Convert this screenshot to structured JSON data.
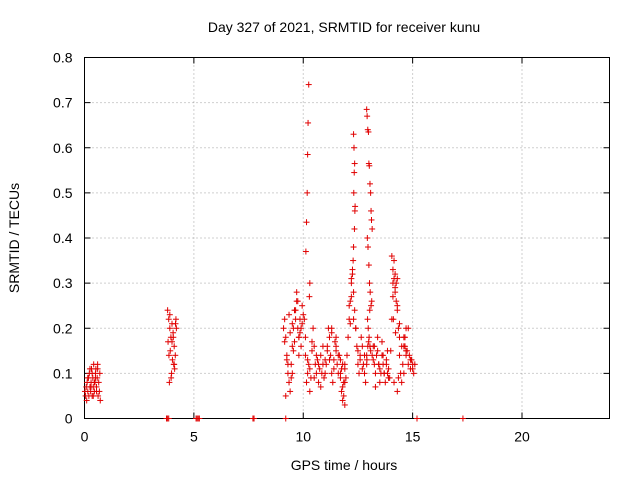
{
  "chart_data": {
    "type": "scatter",
    "title": "Day 327 of 2021, SRMTID for receiver kunu",
    "xlabel": "GPS time / hours",
    "ylabel": "SRMTID / TECUs",
    "xlim": [
      0,
      24
    ],
    "ylim": [
      0,
      0.8
    ],
    "xticks": [
      0,
      5,
      10,
      15,
      20
    ],
    "yticks": [
      0,
      0.1,
      0.2,
      0.3,
      0.4,
      0.5,
      0.6,
      0.7,
      0.8
    ],
    "xtick_labels": [
      "0",
      "5",
      "10",
      "15",
      "20"
    ],
    "ytick_labels": [
      "0",
      "0.1",
      "0.2",
      "0.3",
      "0.4",
      "0.5",
      "0.6",
      "0.7",
      "0.8"
    ],
    "grid": true,
    "marker": "+",
    "color": "#e00000",
    "series": [
      {
        "name": "SRMTID",
        "x": [
          0.02,
          0.05,
          0.08,
          0.1,
          0.12,
          0.15,
          0.18,
          0.2,
          0.22,
          0.25,
          0.28,
          0.3,
          0.32,
          0.35,
          0.38,
          0.4,
          0.42,
          0.45,
          0.48,
          0.5,
          0.52,
          0.55,
          0.58,
          0.6,
          0.62,
          0.65,
          0.68,
          0.7,
          0.72,
          0.15,
          0.25,
          0.35,
          0.45,
          0.55,
          0.3,
          0.4,
          0.5,
          0.6,
          3.8,
          3.85,
          3.9,
          3.95,
          4.0,
          4.05,
          4.1,
          4.15,
          4.2,
          3.82,
          3.92,
          4.02,
          4.12,
          3.88,
          3.98,
          4.08,
          4.18,
          3.86,
          3.96,
          4.06,
          4.16,
          3.9,
          4.0,
          4.1,
          9.1,
          9.15,
          9.2,
          9.25,
          9.3,
          9.35,
          9.4,
          9.45,
          9.5,
          9.55,
          9.6,
          9.65,
          9.7,
          9.75,
          9.8,
          9.85,
          9.9,
          9.95,
          10.0,
          9.2,
          9.3,
          9.4,
          9.5,
          9.6,
          9.7,
          9.8,
          9.9,
          9.25,
          9.45,
          9.65,
          9.85,
          9.35,
          9.55,
          9.75,
          9.95,
          9.15,
          9.5,
          9.8,
          10.05,
          10.1,
          10.15,
          10.2,
          10.25,
          10.3,
          10.35,
          10.4,
          10.45,
          10.5,
          10.55,
          10.6,
          10.65,
          10.7,
          10.75,
          10.8,
          10.85,
          10.9,
          10.95,
          11.0,
          10.1,
          10.2,
          10.3,
          10.4,
          10.5,
          10.6,
          10.7,
          10.8,
          10.9,
          11.0,
          10.25,
          10.22,
          10.2,
          10.18,
          10.15,
          10.12,
          10.3,
          10.28,
          11.05,
          11.1,
          11.15,
          11.2,
          11.25,
          11.3,
          11.35,
          11.4,
          11.45,
          11.5,
          11.55,
          11.6,
          11.65,
          11.7,
          11.75,
          11.8,
          11.85,
          11.9,
          11.95,
          11.1,
          11.2,
          11.3,
          11.4,
          11.5,
          11.6,
          11.7,
          11.8,
          11.9,
          11.3,
          11.5,
          11.7,
          11.9,
          11.75,
          11.8,
          11.85,
          11.9,
          12.0,
          12.05,
          12.1,
          12.15,
          12.2,
          12.25,
          12.3,
          12.35,
          12.4,
          12.45,
          12.5,
          12.55,
          12.6,
          12.65,
          12.7,
          12.75,
          12.8,
          12.85,
          12.9,
          12.95,
          12.1,
          12.2,
          12.3,
          12.4,
          12.5,
          12.6,
          12.7,
          12.8,
          12.9,
          12.3,
          12.32,
          12.35,
          12.33,
          12.31,
          12.36,
          12.34,
          12.3,
          12.28,
          12.37,
          12.25,
          12.2,
          12.15,
          12.9,
          12.92,
          12.95,
          12.98,
          13.0,
          13.02,
          13.05,
          13.08,
          13.1,
          13.12,
          13.15,
          12.93,
          12.96,
          13.0,
          13.03,
          13.06,
          13.1,
          12.94,
          12.97,
          13.01,
          13.05,
          13.08,
          12.91,
          12.99,
          13.04,
          13.13,
          13.15,
          13.2,
          13.25,
          13.3,
          13.35,
          13.4,
          13.45,
          13.5,
          13.55,
          13.6,
          13.65,
          13.7,
          13.75,
          13.8,
          13.85,
          13.9,
          13.95,
          13.2,
          13.3,
          13.4,
          13.5,
          13.6,
          13.7,
          13.8,
          13.9,
          13.25,
          13.45,
          13.65,
          13.85,
          14.0,
          14.05,
          14.1,
          14.15,
          14.2,
          14.25,
          14.3,
          14.35,
          14.4,
          14.45,
          14.5,
          14.55,
          14.6,
          14.65,
          14.7,
          14.75,
          14.8,
          14.85,
          14.9,
          14.95,
          15.0,
          15.05,
          15.1,
          14.1,
          14.2,
          14.3,
          14.4,
          14.5,
          14.6,
          14.7,
          14.8,
          14.9,
          15.0,
          14.05,
          14.1,
          14.15,
          14.2,
          14.25,
          14.3,
          14.12,
          14.22,
          14.15,
          14.3,
          14.35,
          14.4,
          14.6,
          14.65,
          14.7,
          3.75,
          3.8,
          3.85,
          5.1,
          5.15,
          5.2,
          5.25,
          7.7,
          7.75,
          9.2,
          15.2,
          17.3
        ],
        "y": [
          0.06,
          0.05,
          0.07,
          0.04,
          0.08,
          0.06,
          0.09,
          0.05,
          0.1,
          0.07,
          0.06,
          0.08,
          0.11,
          0.05,
          0.09,
          0.07,
          0.12,
          0.06,
          0.08,
          0.1,
          0.11,
          0.07,
          0.09,
          0.12,
          0.05,
          0.08,
          0.06,
          0.1,
          0.04,
          0.09,
          0.11,
          0.1,
          0.08,
          0.06,
          0.07,
          0.05,
          0.09,
          0.11,
          0.24,
          0.22,
          0.2,
          0.18,
          0.21,
          0.19,
          0.16,
          0.14,
          0.2,
          0.17,
          0.15,
          0.13,
          0.11,
          0.08,
          0.1,
          0.12,
          0.22,
          0.14,
          0.09,
          0.18,
          0.21,
          0.23,
          0.17,
          0.12,
          0.2,
          0.22,
          0.18,
          0.14,
          0.1,
          0.08,
          0.06,
          0.12,
          0.16,
          0.2,
          0.24,
          0.22,
          0.26,
          0.2,
          0.18,
          0.22,
          0.16,
          0.25,
          0.23,
          0.05,
          0.12,
          0.19,
          0.21,
          0.17,
          0.28,
          0.14,
          0.2,
          0.13,
          0.09,
          0.24,
          0.19,
          0.23,
          0.15,
          0.26,
          0.21,
          0.17,
          0.1,
          0.18,
          0.22,
          0.14,
          0.08,
          0.1,
          0.12,
          0.06,
          0.09,
          0.15,
          0.2,
          0.16,
          0.12,
          0.1,
          0.13,
          0.08,
          0.11,
          0.14,
          0.1,
          0.12,
          0.09,
          0.13,
          0.18,
          0.13,
          0.11,
          0.17,
          0.09,
          0.14,
          0.12,
          0.07,
          0.16,
          0.1,
          0.74,
          0.655,
          0.585,
          0.5,
          0.435,
          0.37,
          0.3,
          0.27,
          0.12,
          0.15,
          0.2,
          0.18,
          0.14,
          0.1,
          0.08,
          0.13,
          0.17,
          0.15,
          0.12,
          0.1,
          0.14,
          0.09,
          0.11,
          0.07,
          0.05,
          0.03,
          0.09,
          0.16,
          0.13,
          0.19,
          0.11,
          0.16,
          0.14,
          0.1,
          0.12,
          0.08,
          0.2,
          0.18,
          0.13,
          0.11,
          0.06,
          0.04,
          0.08,
          0.12,
          0.14,
          0.18,
          0.22,
          0.26,
          0.3,
          0.32,
          0.28,
          0.24,
          0.2,
          0.16,
          0.12,
          0.1,
          0.14,
          0.18,
          0.16,
          0.12,
          0.1,
          0.08,
          0.14,
          0.16,
          0.25,
          0.31,
          0.22,
          0.2,
          0.15,
          0.13,
          0.11,
          0.14,
          0.12,
          0.63,
          0.6,
          0.565,
          0.545,
          0.5,
          0.46,
          0.42,
          0.38,
          0.35,
          0.47,
          0.33,
          0.27,
          0.21,
          0.685,
          0.67,
          0.64,
          0.635,
          0.565,
          0.56,
          0.52,
          0.5,
          0.46,
          0.44,
          0.42,
          0.4,
          0.38,
          0.34,
          0.3,
          0.28,
          0.25,
          0.22,
          0.2,
          0.18,
          0.16,
          0.15,
          0.13,
          0.17,
          0.24,
          0.26,
          0.14,
          0.16,
          0.12,
          0.1,
          0.14,
          0.18,
          0.12,
          0.08,
          0.1,
          0.14,
          0.12,
          0.1,
          0.08,
          0.13,
          0.15,
          0.11,
          0.09,
          0.13,
          0.07,
          0.15,
          0.11,
          0.17,
          0.1,
          0.12,
          0.09,
          0.16,
          0.12,
          0.14,
          0.1,
          0.15,
          0.22,
          0.3,
          0.35,
          0.32,
          0.3,
          0.25,
          0.2,
          0.14,
          0.1,
          0.08,
          0.12,
          0.16,
          0.18,
          0.2,
          0.15,
          0.12,
          0.14,
          0.11,
          0.13,
          0.12,
          0.1,
          0.12,
          0.27,
          0.29,
          0.31,
          0.18,
          0.16,
          0.1,
          0.15,
          0.2,
          0.13,
          0.11,
          0.36,
          0.33,
          0.31,
          0.28,
          0.26,
          0.24,
          0.22,
          0.19,
          0.08,
          0.06,
          0.09,
          0.21,
          0.18,
          0.16,
          0.14,
          0.0,
          0.0,
          0.0,
          0.0,
          0.0,
          0.0,
          0.0,
          0.0,
          0.0,
          0.0,
          0.0,
          0.0
        ]
      }
    ]
  }
}
